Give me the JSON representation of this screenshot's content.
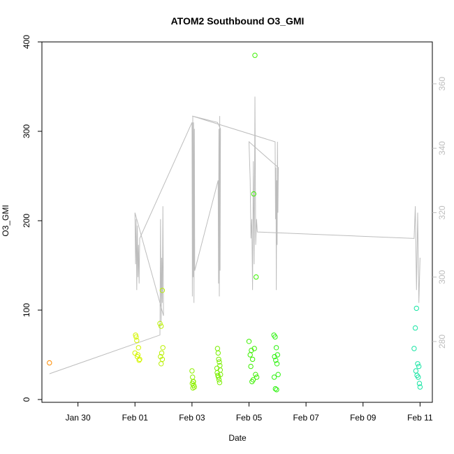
{
  "chart_data": {
    "type": "scatter",
    "title": "ATOM2 Southbound O3_GMI",
    "xlabel": "Date",
    "ylabel": "O3_GMI",
    "x_axis": {
      "type": "date",
      "range": [
        "2017-01-28T20:00",
        "2017-02-11T08:00"
      ],
      "ticks": [
        {
          "value": "2017-01-30",
          "label": "Jan 30"
        },
        {
          "value": "2017-02-01",
          "label": "Feb 01"
        },
        {
          "value": "2017-02-03",
          "label": "Feb 03"
        },
        {
          "value": "2017-02-05",
          "label": "Feb 05"
        },
        {
          "value": "2017-02-07",
          "label": "Feb 07"
        },
        {
          "value": "2017-02-09",
          "label": "Feb 09"
        },
        {
          "value": "2017-02-11",
          "label": "Feb 11"
        }
      ]
    },
    "y_axis": {
      "range": [
        0,
        400
      ],
      "ticks": [
        0,
        100,
        200,
        300,
        400
      ]
    },
    "y2_axis": {
      "range": [
        262,
        373
      ],
      "ticks": [
        280,
        300,
        320,
        340,
        360
      ],
      "color": "#bdbdbd"
    },
    "grid": false,
    "legend": "none",
    "series": [
      {
        "kind": "points",
        "axis": "left",
        "points": [
          {
            "x": "2017-01-29T00:00",
            "y": 41,
            "color": "#ff8c00"
          },
          {
            "x": "2017-02-01T00:00",
            "y": 52,
            "color": "#d4f500"
          },
          {
            "x": "2017-02-01T01:00",
            "y": 70,
            "color": "#d4f500"
          },
          {
            "x": "2017-02-01T02:00",
            "y": 48,
            "color": "#d4f500"
          },
          {
            "x": "2017-02-01T03:00",
            "y": 58,
            "color": "#d4f500"
          },
          {
            "x": "2017-02-01T04:00",
            "y": 45,
            "color": "#d4f500"
          },
          {
            "x": "2017-02-01T01:30",
            "y": 66,
            "color": "#d4f500"
          },
          {
            "x": "2017-02-01T02:30",
            "y": 50,
            "color": "#d4f500"
          },
          {
            "x": "2017-02-01T03:30",
            "y": 44,
            "color": "#d4f500"
          },
          {
            "x": "2017-02-01T00:30",
            "y": 72,
            "color": "#d4f500"
          },
          {
            "x": "2017-02-01T21:00",
            "y": 85,
            "color": "#b9f000"
          },
          {
            "x": "2017-02-01T22:00",
            "y": 82,
            "color": "#b9f000"
          },
          {
            "x": "2017-02-01T23:00",
            "y": 122,
            "color": "#b9f000"
          },
          {
            "x": "2017-02-01T21:30",
            "y": 48,
            "color": "#b9f000"
          },
          {
            "x": "2017-02-01T22:30",
            "y": 52,
            "color": "#b9f000"
          },
          {
            "x": "2017-02-01T23:30",
            "y": 58,
            "color": "#b9f000"
          },
          {
            "x": "2017-02-01T22:00",
            "y": 40,
            "color": "#b9f000"
          },
          {
            "x": "2017-02-01T23:00",
            "y": 45,
            "color": "#b9f000"
          },
          {
            "x": "2017-02-03T00:00",
            "y": 32,
            "color": "#8ef000"
          },
          {
            "x": "2017-02-03T00:30",
            "y": 25,
            "color": "#8ef000"
          },
          {
            "x": "2017-02-03T01:00",
            "y": 20,
            "color": "#8ef000"
          },
          {
            "x": "2017-02-03T01:30",
            "y": 16,
            "color": "#8ef000"
          },
          {
            "x": "2017-02-03T02:00",
            "y": 14,
            "color": "#8ef000"
          },
          {
            "x": "2017-02-03T00:15",
            "y": 18,
            "color": "#8ef000"
          },
          {
            "x": "2017-02-03T00:45",
            "y": 13,
            "color": "#8ef000"
          },
          {
            "x": "2017-02-03T01:15",
            "y": 20,
            "color": "#8ef000"
          },
          {
            "x": "2017-02-03T21:30",
            "y": 57,
            "color": "#7aef00"
          },
          {
            "x": "2017-02-03T22:00",
            "y": 52,
            "color": "#7aef00"
          },
          {
            "x": "2017-02-03T22:30",
            "y": 45,
            "color": "#7aef00"
          },
          {
            "x": "2017-02-03T23:00",
            "y": 42,
            "color": "#7aef00"
          },
          {
            "x": "2017-02-03T23:30",
            "y": 38,
            "color": "#7aef00"
          },
          {
            "x": "2017-02-03T21:00",
            "y": 35,
            "color": "#7aef00"
          },
          {
            "x": "2017-02-03T21:15",
            "y": 30,
            "color": "#7aef00"
          },
          {
            "x": "2017-02-03T21:45",
            "y": 27,
            "color": "#7aef00"
          },
          {
            "x": "2017-02-03T22:15",
            "y": 25,
            "color": "#7aef00"
          },
          {
            "x": "2017-02-03T22:45",
            "y": 22,
            "color": "#7aef00"
          },
          {
            "x": "2017-02-03T23:15",
            "y": 19,
            "color": "#7aef00"
          },
          {
            "x": "2017-02-03T23:45",
            "y": 33,
            "color": "#7aef00"
          },
          {
            "x": "2017-02-04T00:00",
            "y": 28,
            "color": "#7aef00"
          },
          {
            "x": "2017-02-05T00:00",
            "y": 65,
            "color": "#3cf000"
          },
          {
            "x": "2017-02-05T01:00",
            "y": 50,
            "color": "#3cf000"
          },
          {
            "x": "2017-02-05T02:00",
            "y": 55,
            "color": "#3cf000"
          },
          {
            "x": "2017-02-05T03:00",
            "y": 45,
            "color": "#3cf000"
          },
          {
            "x": "2017-02-05T04:00",
            "y": 230,
            "color": "#3cf000"
          },
          {
            "x": "2017-02-05T05:00",
            "y": 385,
            "color": "#3cf000"
          },
          {
            "x": "2017-02-05T06:00",
            "y": 137,
            "color": "#3cf000"
          },
          {
            "x": "2017-02-05T01:30",
            "y": 37,
            "color": "#3cf000"
          },
          {
            "x": "2017-02-05T02:30",
            "y": 20,
            "color": "#3cf000"
          },
          {
            "x": "2017-02-05T03:30",
            "y": 22,
            "color": "#3cf000"
          },
          {
            "x": "2017-02-05T04:30",
            "y": 57,
            "color": "#3cf000"
          },
          {
            "x": "2017-02-05T05:30",
            "y": 28,
            "color": "#3cf000"
          },
          {
            "x": "2017-02-05T06:30",
            "y": 25,
            "color": "#3cf000"
          },
          {
            "x": "2017-02-05T21:00",
            "y": 72,
            "color": "#2df20f"
          },
          {
            "x": "2017-02-05T22:00",
            "y": 70,
            "color": "#2df20f"
          },
          {
            "x": "2017-02-05T23:00",
            "y": 58,
            "color": "#2df20f"
          },
          {
            "x": "2017-02-06T00:00",
            "y": 50,
            "color": "#2df20f"
          },
          {
            "x": "2017-02-05T21:30",
            "y": 48,
            "color": "#2df20f"
          },
          {
            "x": "2017-02-05T22:30",
            "y": 44,
            "color": "#2df20f"
          },
          {
            "x": "2017-02-05T23:30",
            "y": 40,
            "color": "#2df20f"
          },
          {
            "x": "2017-02-06T00:30",
            "y": 28,
            "color": "#2df20f"
          },
          {
            "x": "2017-02-05T21:15",
            "y": 25,
            "color": "#2df20f"
          },
          {
            "x": "2017-02-05T22:15",
            "y": 12,
            "color": "#2df20f"
          },
          {
            "x": "2017-02-05T23:15",
            "y": 11,
            "color": "#2df20f"
          },
          {
            "x": "2017-02-10T19:00",
            "y": 57,
            "color": "#18e5a4"
          },
          {
            "x": "2017-02-10T20:00",
            "y": 80,
            "color": "#18e5a4"
          },
          {
            "x": "2017-02-10T21:00",
            "y": 102,
            "color": "#18e5a4"
          },
          {
            "x": "2017-02-10T22:00",
            "y": 40,
            "color": "#18e5a4"
          },
          {
            "x": "2017-02-10T23:00",
            "y": 37,
            "color": "#18e5a4"
          },
          {
            "x": "2017-02-10T20:30",
            "y": 32,
            "color": "#18e5a4"
          },
          {
            "x": "2017-02-10T21:30",
            "y": 27,
            "color": "#18e5a4"
          },
          {
            "x": "2017-02-10T22:30",
            "y": 25,
            "color": "#18e5a4"
          },
          {
            "x": "2017-02-10T23:30",
            "y": 18,
            "color": "#18e5a4"
          },
          {
            "x": "2017-02-11T00:00",
            "y": 14,
            "color": "#18e5a4"
          }
        ]
      },
      {
        "kind": "line",
        "axis": "right",
        "color": "#bdbdbd",
        "x": [
          "2017-01-29T00:00",
          "2017-02-01T21:00",
          "2017-02-01T21:30",
          "2017-02-01T22:00",
          "2017-02-01T22:30",
          "2017-02-01T23:00",
          "2017-02-01T23:30",
          "2017-02-02T00:00",
          "2017-02-01T00:00",
          "2017-02-01T00:30",
          "2017-02-01T01:00",
          "2017-02-01T01:30",
          "2017-02-01T02:00",
          "2017-02-01T02:30",
          "2017-02-01T03:00",
          "2017-02-01T03:30",
          "2017-02-01T04:00",
          "2017-02-03T00:00",
          "2017-02-03T00:20",
          "2017-02-03T00:40",
          "2017-02-03T01:00",
          "2017-02-03T01:20",
          "2017-02-03T01:40",
          "2017-02-03T02:00",
          "2017-02-03T02:20",
          "2017-02-03T22:00",
          "2017-02-03T22:20",
          "2017-02-03T22:40",
          "2017-02-03T23:00",
          "2017-02-03T23:20",
          "2017-02-03T23:40",
          "2017-02-04T00:00",
          "2017-02-03T21:30",
          "2017-02-03T00:10",
          "2017-02-05T22:00",
          "2017-02-05T22:20",
          "2017-02-05T22:40",
          "2017-02-05T23:00",
          "2017-02-05T23:20",
          "2017-02-05T23:40",
          "2017-02-06T00:00",
          "2017-02-06T00:20",
          "2017-02-06T00:40",
          "2017-02-05T00:00",
          "2017-02-05T01:00",
          "2017-02-05T01:40",
          "2017-02-05T02:20",
          "2017-02-05T03:00",
          "2017-02-05T03:40",
          "2017-02-05T04:20",
          "2017-02-05T05:00",
          "2017-02-05T05:40",
          "2017-02-05T06:20",
          "2017-02-05T07:00",
          "2017-02-10T19:00",
          "2017-02-10T20:00",
          "2017-02-10T21:00",
          "2017-02-10T22:00",
          "2017-02-10T23:00",
          "2017-02-11T00:00"
        ],
        "y": [
          270,
          282,
          318,
          286,
          306,
          292,
          322,
          288,
          320,
          304,
          318,
          296,
          316,
          300,
          310,
          298,
          312,
          348,
          294,
          350,
          300,
          348,
          292,
          346,
          302,
          330,
          298,
          346,
          294,
          350,
          302,
          346,
          348,
          350,
          342,
          318,
          334,
          296,
          330,
          310,
          342,
          320,
          334,
          342,
          330,
          312,
          318,
          296,
          336,
          304,
          356,
          310,
          318,
          314,
          312,
          322,
          296,
          320,
          292,
          306
        ]
      }
    ]
  }
}
